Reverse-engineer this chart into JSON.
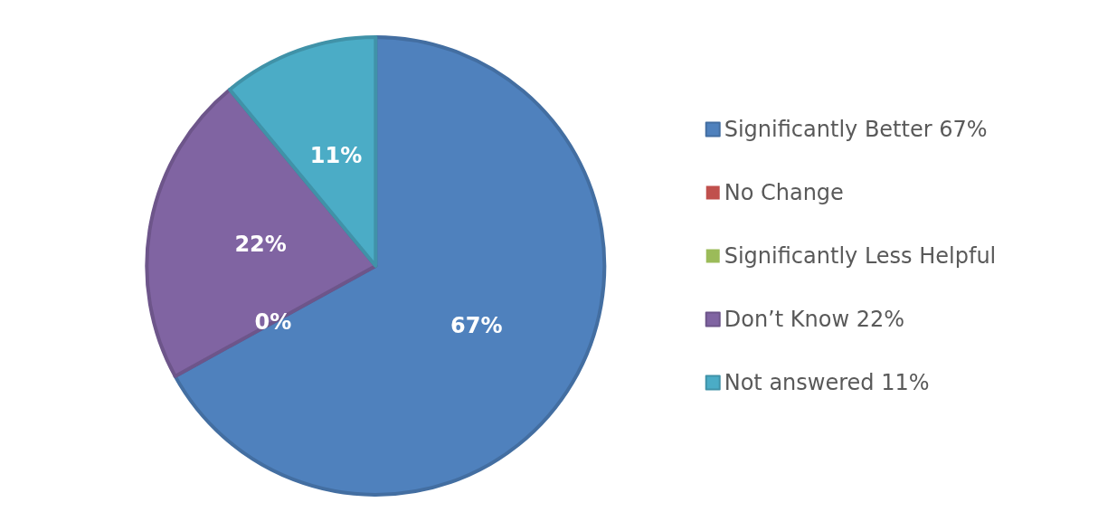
{
  "chart_data": {
    "type": "pie",
    "categories": [
      "Significantly Better 67%",
      "No Change",
      "Significantly Less Helpful",
      "Don’t Know 22%",
      "Not answered 11%"
    ],
    "values": [
      67,
      0,
      0,
      22,
      11
    ],
    "colors": [
      "#4f81bd",
      "#c0504d",
      "#9bbb59",
      "#8064a2",
      "#4bacc6"
    ],
    "value_labels": [
      "67%",
      "0%",
      null,
      "22%",
      "11%"
    ],
    "legend": "right"
  }
}
